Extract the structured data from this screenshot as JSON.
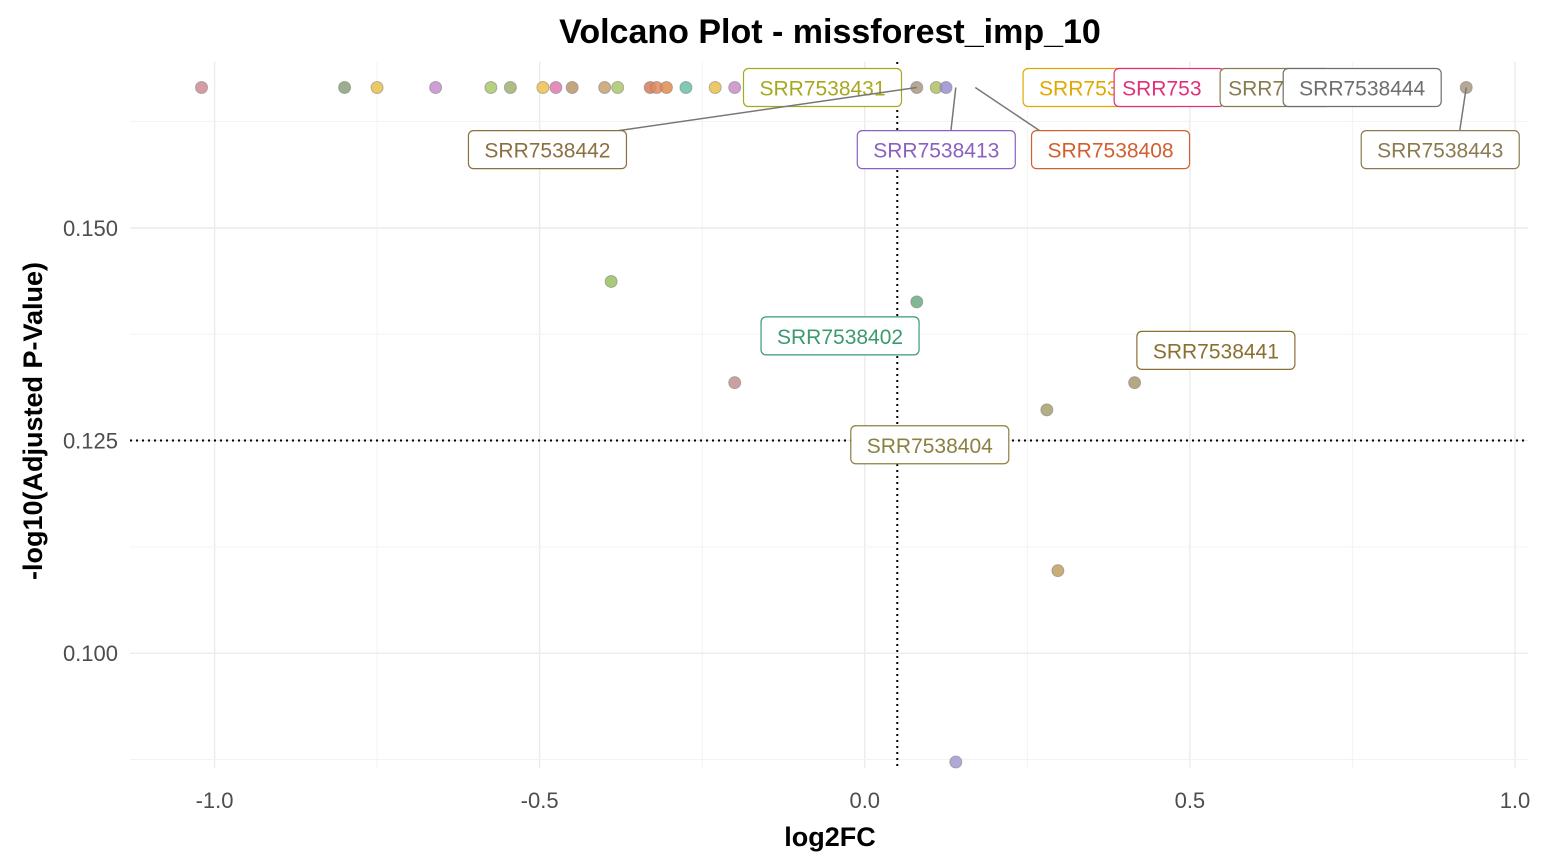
{
  "chart_data": {
    "type": "scatter",
    "title": "Volcano Plot - missforest_imp_10",
    "xlabel": "log2FC",
    "ylabel": "-log10(Adjusted P-Value)",
    "xlim": [
      -1.13,
      1.02
    ],
    "ylim": [
      0.0865,
      0.1695
    ],
    "x_ticks": [
      -1.0,
      -0.5,
      0.0,
      0.5,
      1.0
    ],
    "x_tick_labels": [
      "-1.0",
      "-0.5",
      "0.0",
      "0.5",
      "1.0"
    ],
    "y_ticks": [
      0.1,
      0.125,
      0.15
    ],
    "y_tick_labels": [
      "0.100",
      "0.125",
      "0.150"
    ],
    "grid": true,
    "vline": 0.05,
    "hline": 0.125,
    "points": [
      {
        "x": -1.02,
        "y": 0.1665,
        "color": "#d08a93"
      },
      {
        "x": -0.8,
        "y": 0.1665,
        "color": "#8aa07a"
      },
      {
        "x": -0.75,
        "y": 0.1665,
        "color": "#e8c04a"
      },
      {
        "x": -0.66,
        "y": 0.1665,
        "color": "#c58ecb"
      },
      {
        "x": -0.575,
        "y": 0.1665,
        "color": "#a8c86a"
      },
      {
        "x": -0.545,
        "y": 0.1665,
        "color": "#a0b070"
      },
      {
        "x": -0.495,
        "y": 0.1665,
        "color": "#efc04e"
      },
      {
        "x": -0.475,
        "y": 0.1665,
        "color": "#e07ab0"
      },
      {
        "x": -0.45,
        "y": 0.1665,
        "color": "#b8956a"
      },
      {
        "x": -0.4,
        "y": 0.1665,
        "color": "#c8a070"
      },
      {
        "x": -0.38,
        "y": 0.1665,
        "color": "#a8c86a"
      },
      {
        "x": -0.33,
        "y": 0.1665,
        "color": "#d87a5a"
      },
      {
        "x": -0.32,
        "y": 0.1665,
        "color": "#e08a60"
      },
      {
        "x": -0.305,
        "y": 0.1665,
        "color": "#e08a50"
      },
      {
        "x": -0.275,
        "y": 0.1665,
        "color": "#6ac0a8"
      },
      {
        "x": -0.23,
        "y": 0.1665,
        "color": "#e8c04a"
      },
      {
        "x": -0.2,
        "y": 0.1665,
        "color": "#c88ec8"
      },
      {
        "x": 0.08,
        "y": 0.1665,
        "color": "#a89a80"
      },
      {
        "x": 0.11,
        "y": 0.1665,
        "color": "#b0c060"
      },
      {
        "x": 0.125,
        "y": 0.1665,
        "color": "#9c8ed0"
      },
      {
        "x": 0.925,
        "y": 0.1665,
        "color": "#a89a80"
      },
      {
        "x": -0.39,
        "y": 0.1437,
        "color": "#98c060"
      },
      {
        "x": 0.08,
        "y": 0.1413,
        "color": "#6aab80"
      },
      {
        "x": -0.2,
        "y": 0.1318,
        "color": "#c09090"
      },
      {
        "x": 0.415,
        "y": 0.1318,
        "color": "#a89870"
      },
      {
        "x": 0.28,
        "y": 0.1286,
        "color": "#a8a070"
      },
      {
        "x": 0.297,
        "y": 0.1097,
        "color": "#c0a060"
      },
      {
        "x": 0.14,
        "y": 0.0872,
        "color": "#a09ad0"
      }
    ],
    "labels": [
      {
        "text": "SRR7538431",
        "color": "#a8a820",
        "px": 0.11,
        "py": 0.1665,
        "lx": -0.065,
        "ly": 0.1665,
        "leader": false
      },
      {
        "text": "SRR7538434",
        "color": "#e0a800",
        "px": 0.14,
        "py": 0.1665,
        "lx": 0.365,
        "ly": 0.1665,
        "leader": false
      },
      {
        "text": "SRR753",
        "color": "#e0307a",
        "px": 0.4,
        "py": 0.1665,
        "lx": 0.505,
        "ly": 0.1665,
        "leader": false,
        "clip": true
      },
      {
        "text": "SRR753",
        "color": "#8a7a50",
        "px": 0.6,
        "py": 0.1665,
        "lx": 0.668,
        "ly": 0.1665,
        "leader": false,
        "clip": true
      },
      {
        "text": "SRR7538444",
        "color": "#6e6e6e",
        "px": 0.8,
        "py": 0.1665,
        "lx": 0.765,
        "ly": 0.1665,
        "leader": false
      },
      {
        "text": "SRR7538442",
        "color": "#8a7040",
        "px": 0.08,
        "py": 0.1665,
        "lx": -0.488,
        "ly": 0.1592,
        "leader": true
      },
      {
        "text": "SRR7538413",
        "color": "#8a60c0",
        "px": 0.14,
        "py": 0.1665,
        "lx": 0.11,
        "ly": 0.1592,
        "leader": true
      },
      {
        "text": "SRR7538408",
        "color": "#d06030",
        "px": 0.17,
        "py": 0.1665,
        "lx": 0.378,
        "ly": 0.1592,
        "leader": true
      },
      {
        "text": "SRR7538443",
        "color": "#8a7a50",
        "px": 0.925,
        "py": 0.1665,
        "lx": 0.885,
        "ly": 0.1592,
        "leader": true
      },
      {
        "text": "SRR7538402",
        "color": "#3a9a70",
        "px": 0.08,
        "py": 0.1413,
        "lx": -0.038,
        "ly": 0.1373,
        "leader": false
      },
      {
        "text": "SRR7538441",
        "color": "#8a7030",
        "px": 0.415,
        "py": 0.1318,
        "lx": 0.54,
        "ly": 0.1356,
        "leader": false
      },
      {
        "text": "SRR7538404",
        "color": "#8a8040",
        "px": 0.28,
        "py": 0.1286,
        "lx": 0.1,
        "ly": 0.1245,
        "leader": false
      }
    ]
  }
}
